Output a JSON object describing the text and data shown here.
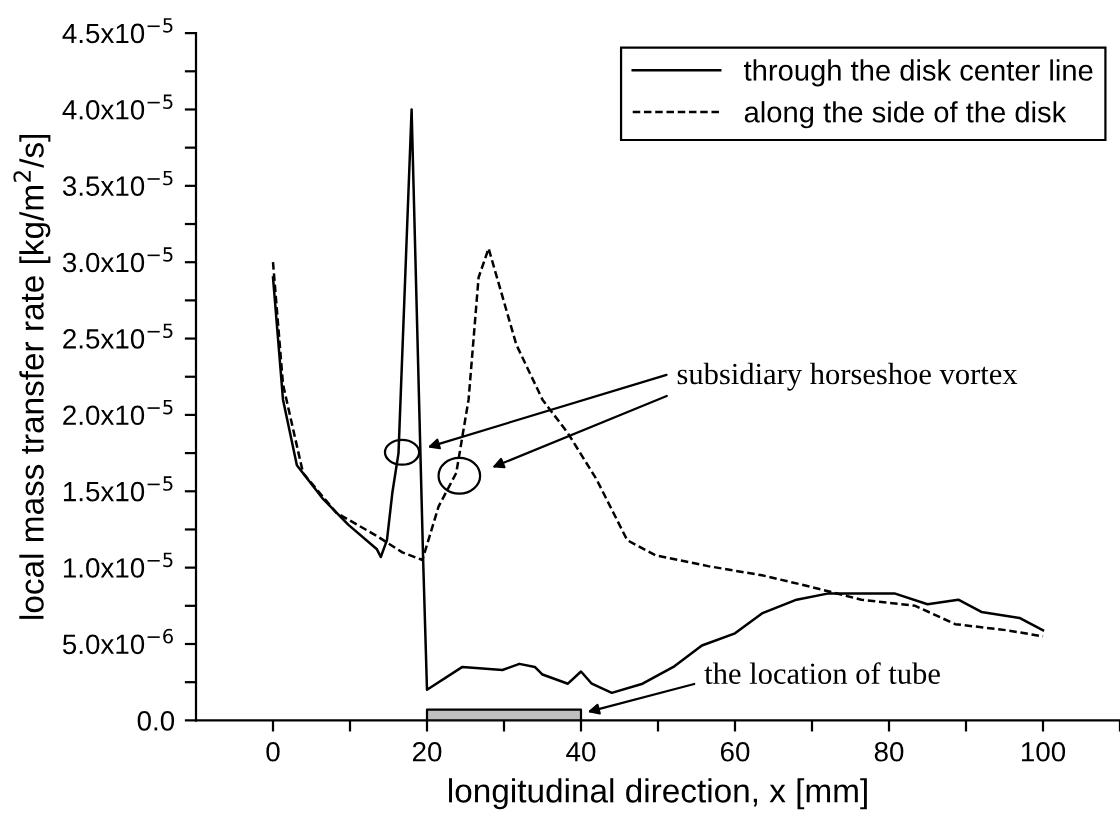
{
  "chart_data": {
    "type": "line",
    "xlabel": "longitudinal direction, x [mm]",
    "ylabel": "local mass transfer rate [kg/m$^{2}$/s]",
    "xlim": [
      -10,
      110
    ],
    "xticks": [
      0,
      {
        "value": 10,
        "label": null
      },
      20,
      {
        "value": 30,
        "label": null
      },
      40,
      {
        "value": 50,
        "label": null
      },
      60,
      {
        "value": 70,
        "label": null
      },
      80,
      {
        "value": 90,
        "label": null
      },
      100,
      {
        "value": 110,
        "label": null
      }
    ],
    "ylim": [
      0,
      4.5e-05
    ],
    "yticks": [
      {
        "value": 0,
        "label": "0.0"
      },
      {
        "value": 2.5e-06,
        "label": null
      },
      {
        "value": 5e-06,
        "label": "5.0x10$^{−6}$"
      },
      {
        "value": 7.5e-06,
        "label": null
      },
      {
        "value": 1e-05,
        "label": "1.0x10$^{−5}$"
      },
      {
        "value": 1.25e-05,
        "label": null
      },
      {
        "value": 1.5e-05,
        "label": "1.5x10$^{−5}$"
      },
      {
        "value": 1.75e-05,
        "label": null
      },
      {
        "value": 2e-05,
        "label": "2.0x10$^{−5}$"
      },
      {
        "value": 2.25e-05,
        "label": null
      },
      {
        "value": 2.5e-05,
        "label": "2.5x10$^{−5}$"
      },
      {
        "value": 2.75e-05,
        "label": null
      },
      {
        "value": 3e-05,
        "label": "3.0x10$^{−5}$"
      },
      {
        "value": 3.25e-05,
        "label": null
      },
      {
        "value": 3.5e-05,
        "label": "3.5x10$^{−5}$"
      },
      {
        "value": 3.75e-05,
        "label": null
      },
      {
        "value": 4e-05,
        "label": "4.0x10$^{−5}$"
      },
      {
        "value": 4.25e-05,
        "label": null
      },
      {
        "value": 4.5e-05,
        "label": "4.5x10$^{−5}$"
      }
    ],
    "legend": "top right",
    "grid": false,
    "series": [
      {
        "name": "through the disk center line",
        "color": "#000000",
        "line_style": "solid",
        "x": [
          0,
          1.3,
          3.1,
          6.5,
          9.8,
          13.5,
          14,
          14.8,
          15.5,
          16.3,
          18,
          19.5,
          20,
          24.6,
          29.8,
          32,
          34,
          35,
          38.3,
          40,
          41.4,
          44,
          48,
          52,
          55.7,
          60,
          63.5,
          68,
          72,
          76.4,
          80.8,
          85,
          89,
          92,
          97,
          100
        ],
        "values": [
          2.9e-05,
          2.1e-05,
          1.67e-05,
          1.45e-05,
          1.28e-05,
          1.12e-05,
          1.07e-05,
          1.18e-05,
          1.49e-05,
          1.75e-05,
          4e-05,
          1.05e-05,
          2e-06,
          3.5e-06,
          3.3e-06,
          3.7e-06,
          3.5e-06,
          3e-06,
          2.4e-06,
          3.2e-06,
          2.4e-06,
          1.8e-06,
          2.4e-06,
          3.5e-06,
          4.9e-06,
          5.7e-06,
          7e-06,
          7.9e-06,
          8.3e-06,
          8.3e-06,
          8.3e-06,
          7.6e-06,
          7.9e-06,
          7.1e-06,
          6.7e-06,
          5.9e-06
        ]
      },
      {
        "name": "along the side of the disk",
        "color": "#000000",
        "line_style": "dashed",
        "x": [
          0,
          1.3,
          3.9,
          8.2,
          13.4,
          16.8,
          19.4,
          21.5,
          23.8,
          25.4,
          26.7,
          28,
          31.6,
          35,
          38.3,
          42,
          46,
          49.7,
          56.5,
          63.5,
          69.4,
          76.4,
          83.4,
          88.6,
          95.3,
          100
        ],
        "values": [
          3e-05,
          2.2e-05,
          1.62e-05,
          1.36e-05,
          1.21e-05,
          1.1e-05,
          1.05e-05,
          1.4e-05,
          1.62e-05,
          2.1e-05,
          2.9e-05,
          3.09e-05,
          2.46e-05,
          2.1e-05,
          1.88e-05,
          1.58e-05,
          1.18e-05,
          1.08e-05,
          1.01e-05,
          9.5e-06,
          8.8e-06,
          7.9e-06,
          7.5e-06,
          6.3e-06,
          5.9e-06,
          5.5e-06
        ]
      },
      {
        "type": "area",
        "color": "#c0c0c0",
        "x": [
          20,
          40
        ],
        "values": [
          7e-07,
          7e-07
        ]
      }
    ],
    "annotations": [
      "subsidiary horseshoe vortex",
      "the location of tube"
    ]
  }
}
